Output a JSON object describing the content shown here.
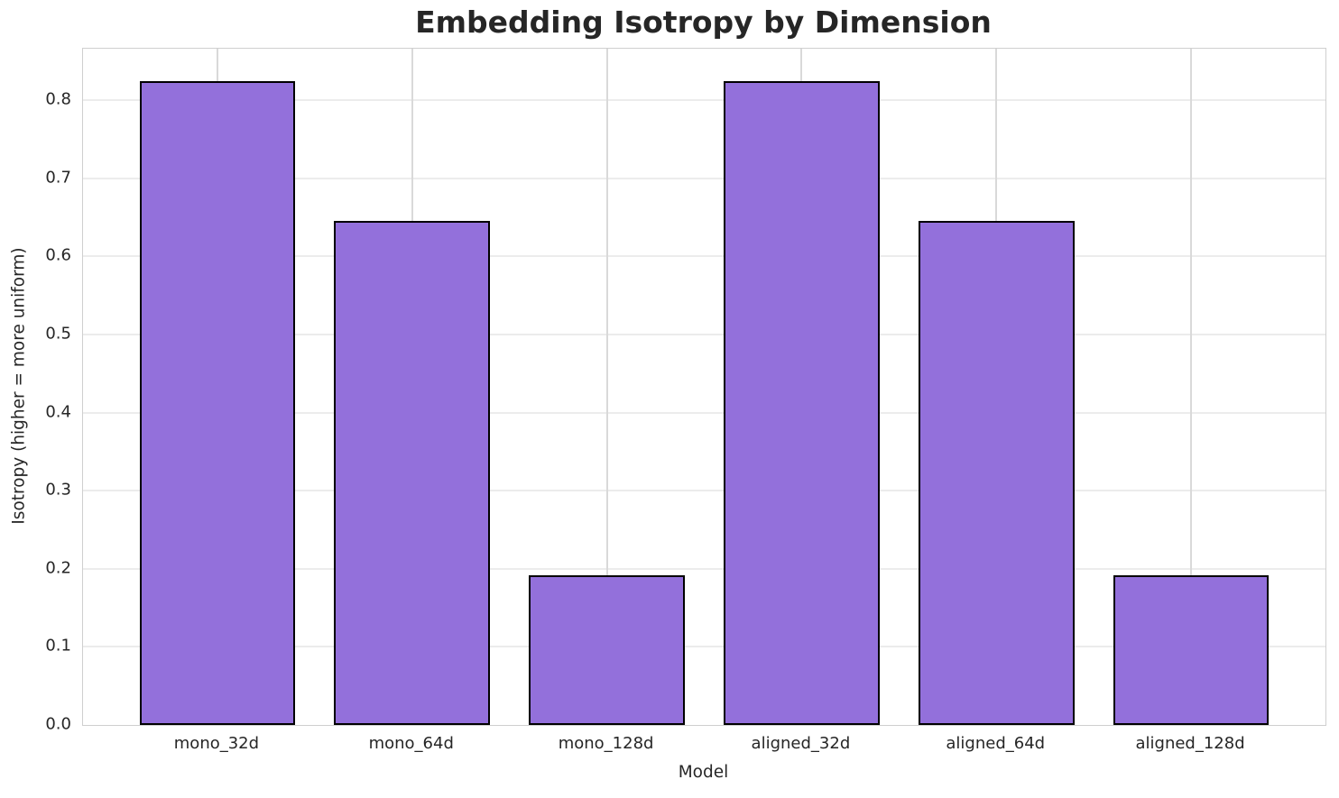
{
  "chart_data": {
    "type": "bar",
    "title": "Embedding Isotropy by Dimension",
    "xlabel": "Model",
    "ylabel": "Isotropy (higher = more uniform)",
    "categories": [
      "mono_32d",
      "mono_64d",
      "mono_128d",
      "aligned_32d",
      "aligned_64d",
      "aligned_128d"
    ],
    "values": [
      0.825,
      0.646,
      0.192,
      0.825,
      0.646,
      0.192
    ],
    "ylim": [
      0,
      0.866
    ],
    "yticks": [
      0.0,
      0.1,
      0.2,
      0.3,
      0.4,
      0.5,
      0.6,
      0.7,
      0.8
    ],
    "ytick_labels": [
      "0.0",
      "0.1",
      "0.2",
      "0.3",
      "0.4",
      "0.5",
      "0.6",
      "0.7",
      "0.8"
    ],
    "bar_color": "#9370DB",
    "bar_edge_color": "#000000",
    "bar_width_fraction": 0.8,
    "grid": true,
    "legend": "none"
  }
}
